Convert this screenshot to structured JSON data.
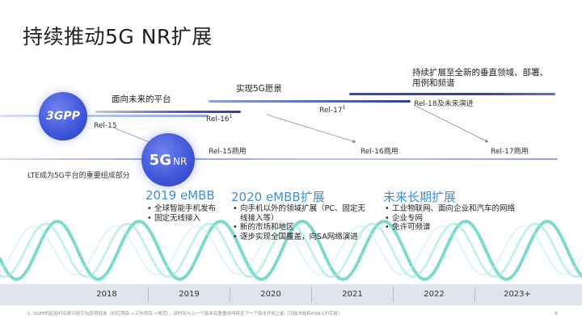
{
  "title": "持续推动5G NR扩展",
  "milestones": {
    "platform": "面向未来的平台",
    "vision": "实现5G愿景",
    "expand": "持续扩展至全新的垂直领域、部署、用例和频谱"
  },
  "releases": {
    "rel15": "Rel-15",
    "rel16": "Rel-16",
    "rel16_sup": "1",
    "rel17": "Rel-17",
    "rel17_sup": "1",
    "rel18": "Rel-18及未来演进",
    "rel15_commercial": "Rel-15商用",
    "rel16_commercial": "Rel-16商用",
    "rel17_commercial": "Rel-17商用"
  },
  "lte_note": "LTE成为5G平台的重要组成部分",
  "badges": {
    "3gpp": "3GPP",
    "5g": "5G",
    "nr": "NR"
  },
  "columns": [
    {
      "title": "2019 eMBB",
      "bullets": [
        "全球智能手机发布",
        "固定无线接入"
      ]
    },
    {
      "title": "2020 eMBB扩展",
      "bullets": [
        "向手机以外的领域扩展（PC、固定无线接入等）",
        "新的市场和地区",
        "逐步实现全国覆盖，向SA网络演进"
      ]
    },
    {
      "title": "未来长期扩展",
      "bullets": [
        "工业物联网、面向企业和汽车的网络",
        "企业专网",
        "免许可频谱"
      ]
    }
  ],
  "years": [
    "2018",
    "2019",
    "2020",
    "2021",
    "2022",
    "2023+"
  ],
  "footnote": "1. 3GPP的起始时间表示研究包获得批准（研究项目->工作项目->规范），该时间与上一个版本有重叠并持续至下一个版本开始之前（功能冻结和ASN.1的完成）",
  "page_number": "6",
  "colors": {
    "accent": "#3f8fd2",
    "track_dark": "#2f3f9e",
    "track_light": "#b9c9ee",
    "wave": "#6fd6c8",
    "badge": "#3f55d8"
  }
}
